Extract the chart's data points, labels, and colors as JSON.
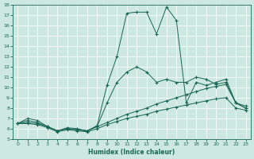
{
  "xlabel": "Humidex (Indice chaleur)",
  "bg_color": "#cce8e0",
  "line_color": "#1a6655",
  "grid_color": "#b0d8cc",
  "xlim": [
    -0.5,
    23.5
  ],
  "ylim": [
    5,
    18
  ],
  "xticks": [
    0,
    1,
    2,
    3,
    4,
    5,
    6,
    7,
    8,
    9,
    10,
    11,
    12,
    13,
    14,
    15,
    16,
    17,
    18,
    19,
    20,
    21,
    22,
    23
  ],
  "yticks": [
    5,
    6,
    7,
    8,
    9,
    10,
    11,
    12,
    13,
    14,
    15,
    16,
    17,
    18
  ],
  "curve1_x": [
    0,
    1,
    2,
    3,
    4,
    5,
    6,
    7,
    8,
    9,
    10,
    11,
    12,
    13,
    14,
    15,
    16,
    17,
    18,
    19,
    20,
    21,
    22,
    23
  ],
  "curve1_y": [
    6.5,
    7.0,
    6.8,
    6.2,
    5.8,
    6.1,
    6.0,
    5.8,
    6.3,
    10.2,
    13.0,
    17.2,
    17.3,
    17.3,
    15.2,
    17.8,
    16.5,
    8.5,
    10.5,
    10.2,
    10.5,
    10.8,
    8.5,
    8.0
  ],
  "curve2_x": [
    0,
    1,
    2,
    3,
    4,
    5,
    6,
    7,
    8,
    9,
    10,
    11,
    12,
    13,
    14,
    15,
    16,
    17,
    18,
    19,
    20,
    21,
    22,
    23
  ],
  "curve2_y": [
    6.5,
    6.6,
    6.5,
    6.2,
    5.8,
    6.0,
    5.9,
    5.8,
    6.2,
    6.6,
    7.0,
    7.4,
    7.7,
    8.0,
    8.4,
    8.7,
    9.0,
    9.3,
    9.6,
    9.9,
    10.1,
    10.3,
    8.5,
    8.2
  ],
  "curve3_x": [
    0,
    1,
    2,
    3,
    4,
    5,
    6,
    7,
    8,
    9,
    10,
    11,
    12,
    13,
    14,
    15,
    16,
    17,
    18,
    19,
    20,
    21,
    22,
    23
  ],
  "curve3_y": [
    6.5,
    6.5,
    6.4,
    6.1,
    5.7,
    5.9,
    5.8,
    5.7,
    6.0,
    6.4,
    6.7,
    7.0,
    7.2,
    7.4,
    7.7,
    7.9,
    8.1,
    8.3,
    8.5,
    8.7,
    8.9,
    9.0,
    8.0,
    7.8
  ],
  "curve4_x": [
    0,
    1,
    2,
    3,
    4,
    5,
    6,
    7,
    8,
    9,
    10,
    11,
    12,
    13,
    14,
    15,
    16,
    17,
    18,
    19,
    20,
    21,
    22,
    23
  ],
  "curve4_y": [
    6.5,
    6.8,
    6.6,
    6.2,
    5.8,
    6.0,
    5.9,
    5.8,
    6.2,
    8.5,
    10.5,
    11.5,
    12.0,
    11.5,
    10.5,
    10.8,
    10.5,
    10.5,
    11.0,
    10.8,
    10.3,
    10.5,
    8.5,
    8.0
  ]
}
